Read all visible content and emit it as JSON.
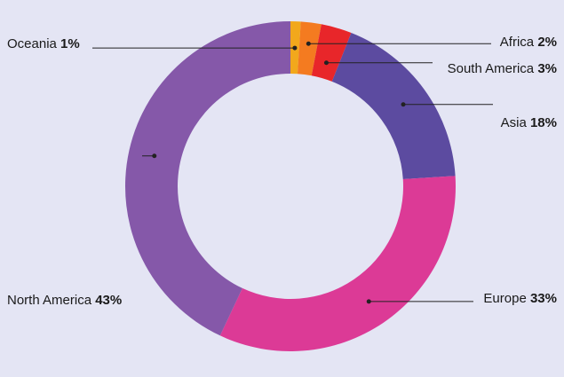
{
  "chart_data": {
    "type": "pie",
    "style": "donut",
    "title": "",
    "unit": "%",
    "slices": [
      {
        "name": "Oceania",
        "value": 1,
        "label": "1%",
        "color": "#f2a81c"
      },
      {
        "name": "Africa",
        "value": 2,
        "label": "2%",
        "color": "#f47b20"
      },
      {
        "name": "South America",
        "value": 3,
        "label": "3%",
        "color": "#e8262a"
      },
      {
        "name": "Asia",
        "value": 18,
        "label": "18%",
        "color": "#5c4ba0"
      },
      {
        "name": "Europe",
        "value": 33,
        "label": "33%",
        "color": "#dc3a96"
      },
      {
        "name": "North America",
        "value": 43,
        "label": "43%",
        "color": "#8558a9"
      }
    ]
  }
}
